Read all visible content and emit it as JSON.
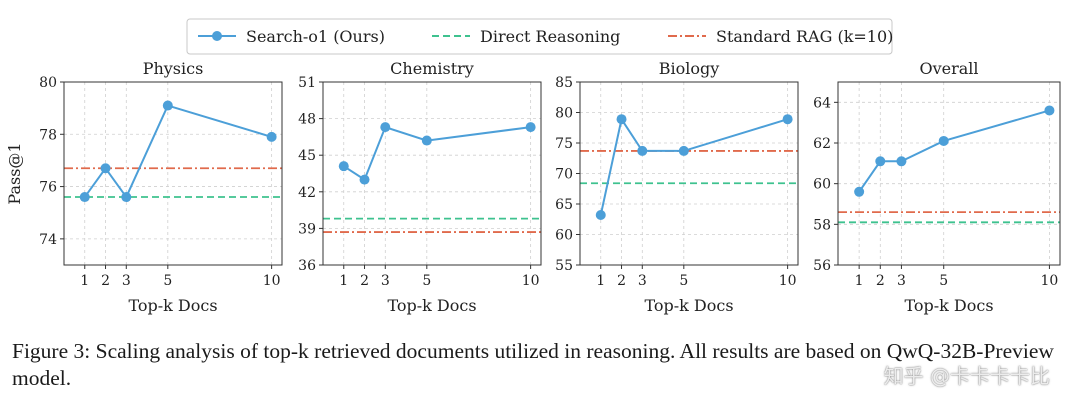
{
  "legend": {
    "entries": [
      {
        "label": "Search-o1 (Ours)",
        "color": "#4c9fd8",
        "style": "solid-marker"
      },
      {
        "label": "Direct Reasoning",
        "color": "#3ec28f",
        "style": "dashed"
      },
      {
        "label": "Standard RAG (k=10)",
        "color": "#e06a4c",
        "style": "dashdot"
      }
    ]
  },
  "colors": {
    "ours": "#4c9fd8",
    "direct": "#3ec28f",
    "rag": "#e06a4c",
    "grid": "#cfcfcf"
  },
  "chart_data": [
    {
      "type": "line",
      "title": "Physics",
      "xlabel": "Top-k Docs",
      "ylabel": "Pass@1",
      "x": [
        1,
        2,
        3,
        5,
        10
      ],
      "xticks": [
        1,
        2,
        3,
        5,
        10
      ],
      "ylim": [
        73,
        80
      ],
      "yticks": [
        74,
        76,
        78,
        80
      ],
      "series": [
        {
          "name": "Search-o1 (Ours)",
          "values": [
            75.6,
            76.7,
            75.6,
            79.1,
            77.9
          ]
        }
      ],
      "baselines": [
        {
          "name": "Direct Reasoning",
          "value": 75.6
        },
        {
          "name": "Standard RAG (k=10)",
          "value": 76.7
        }
      ],
      "grid": true
    },
    {
      "type": "line",
      "title": "Chemistry",
      "xlabel": "Top-k Docs",
      "ylabel": "",
      "x": [
        1,
        2,
        3,
        5,
        10
      ],
      "xticks": [
        1,
        2,
        3,
        5,
        10
      ],
      "ylim": [
        36,
        51
      ],
      "yticks": [
        36,
        39,
        42,
        45,
        48,
        51
      ],
      "series": [
        {
          "name": "Search-o1 (Ours)",
          "values": [
            44.1,
            43.0,
            47.3,
            46.2,
            47.3
          ]
        }
      ],
      "baselines": [
        {
          "name": "Direct Reasoning",
          "value": 39.8
        },
        {
          "name": "Standard RAG (k=10)",
          "value": 38.7
        }
      ],
      "grid": true
    },
    {
      "type": "line",
      "title": "Biology",
      "xlabel": "Top-k Docs",
      "ylabel": "",
      "x": [
        1,
        2,
        3,
        5,
        10
      ],
      "xticks": [
        1,
        2,
        3,
        5,
        10
      ],
      "ylim": [
        55,
        85
      ],
      "yticks": [
        55,
        60,
        65,
        70,
        75,
        80,
        85
      ],
      "series": [
        {
          "name": "Search-o1 (Ours)",
          "values": [
            63.2,
            78.9,
            73.7,
            73.7,
            78.9
          ]
        }
      ],
      "baselines": [
        {
          "name": "Direct Reasoning",
          "value": 68.4
        },
        {
          "name": "Standard RAG (k=10)",
          "value": 73.7
        }
      ],
      "grid": true
    },
    {
      "type": "line",
      "title": "Overall",
      "xlabel": "Top-k Docs",
      "ylabel": "",
      "x": [
        1,
        2,
        3,
        5,
        10
      ],
      "xticks": [
        1,
        2,
        3,
        5,
        10
      ],
      "ylim": [
        56,
        65
      ],
      "yticks": [
        56,
        58,
        60,
        62,
        64
      ],
      "series": [
        {
          "name": "Search-o1 (Ours)",
          "values": [
            59.6,
            61.1,
            61.1,
            62.1,
            63.6
          ]
        }
      ],
      "baselines": [
        {
          "name": "Direct Reasoning",
          "value": 58.1
        },
        {
          "name": "Standard RAG (k=10)",
          "value": 58.6
        }
      ],
      "grid": true
    }
  ],
  "caption": "Figure 3: Scaling analysis of top-k retrieved documents utilized in reasoning. All results are based on QwQ-32B-Preview model.",
  "watermark": "知乎 @卡卡卡卡比"
}
